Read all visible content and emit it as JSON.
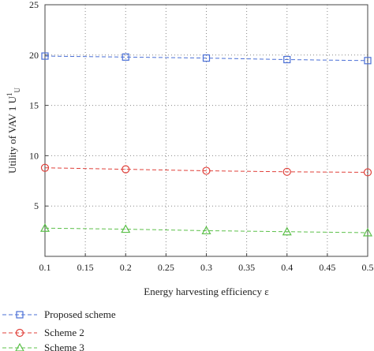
{
  "chart_data": {
    "type": "line",
    "xlabel": "Energy harvesting efficiency ε",
    "ylabel": "Utility of VAV 1 U",
    "ylabel_sup": "1",
    "ylabel_sub": "U",
    "xlim": [
      0.1,
      0.5
    ],
    "ylim": [
      0,
      25
    ],
    "xticks": [
      "0.1",
      "0.15",
      "0.2",
      "0.25",
      "0.3",
      "0.35",
      "0.4",
      "0.45",
      "0.5"
    ],
    "yticks": [
      "5",
      "10",
      "15",
      "20",
      "25"
    ],
    "grid": true,
    "legend_position": "bottom",
    "x": [
      0.1,
      0.2,
      0.3,
      0.4,
      0.5
    ],
    "series": [
      {
        "name": "Proposed scheme",
        "values": [
          19.9,
          19.8,
          19.7,
          19.55,
          19.45
        ],
        "marker": "square",
        "color": "#4a6fd6"
      },
      {
        "name": "Scheme 2",
        "values": [
          8.8,
          8.65,
          8.5,
          8.4,
          8.35
        ],
        "marker": "circle",
        "color": "#e0403a"
      },
      {
        "name": "Scheme 3",
        "values": [
          2.8,
          2.7,
          2.55,
          2.45,
          2.35
        ],
        "marker": "triangle",
        "color": "#5cc04a"
      }
    ]
  }
}
